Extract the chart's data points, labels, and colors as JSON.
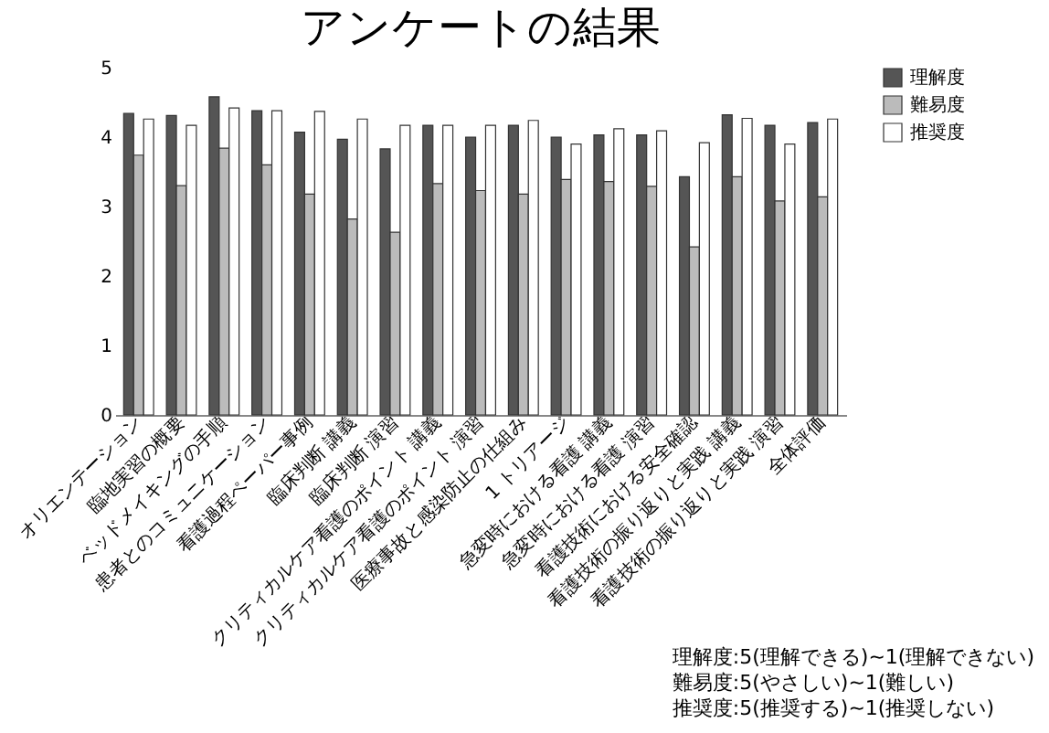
{
  "chart_data": {
    "type": "bar",
    "title": "アンケートの結果",
    "categories": [
      "オリエンテーション",
      "臨地実習の概要",
      "ベッドメイキングの手順",
      "患者とのコミュニケーション",
      "看護過程ペーパー事例",
      "臨床判断 講義",
      "臨床判断 演習",
      "クリティカルケア看護のポイント 講義",
      "クリティカルケア看護のポイント 演習",
      "医療事故と感染防止の仕組み",
      "1 トリアージ",
      "急変時における看護 講義",
      "急変時における看護 演習",
      "看護技術における安全確認",
      "看護技術の振り返りと実践 講義",
      "看護技術の振り返りと実践 演習",
      "全体評価"
    ],
    "series": [
      {
        "name": "理解度",
        "color": "#555555",
        "values": [
          4.34,
          4.31,
          4.58,
          4.38,
          4.07,
          3.97,
          3.83,
          4.17,
          4.0,
          4.17,
          4.0,
          4.03,
          4.03,
          3.43,
          4.32,
          4.17,
          4.21
        ]
      },
      {
        "name": "難易度",
        "color": "#bbbbbb",
        "values": [
          3.74,
          3.3,
          3.84,
          3.6,
          3.18,
          2.82,
          2.63,
          3.33,
          3.23,
          3.18,
          3.39,
          3.36,
          3.29,
          2.42,
          3.43,
          3.08,
          3.14
        ]
      },
      {
        "name": "推奨度",
        "color": "#ffffff",
        "values": [
          4.26,
          4.17,
          4.42,
          4.38,
          4.37,
          4.26,
          4.17,
          4.17,
          4.17,
          4.24,
          3.9,
          4.12,
          4.09,
          3.92,
          4.27,
          3.9,
          4.26
        ]
      }
    ],
    "ylim": [
      0,
      5
    ],
    "yticks": [
      0,
      1,
      2,
      3,
      4,
      5
    ],
    "grid": false,
    "legend": "right",
    "annotations": [
      "理解度:5(理解できる)~1(理解できない)",
      "難易度:5(やさしい)~1(難しい)",
      "推奨度:5(推奨する)~1(推奨しない)"
    ]
  }
}
